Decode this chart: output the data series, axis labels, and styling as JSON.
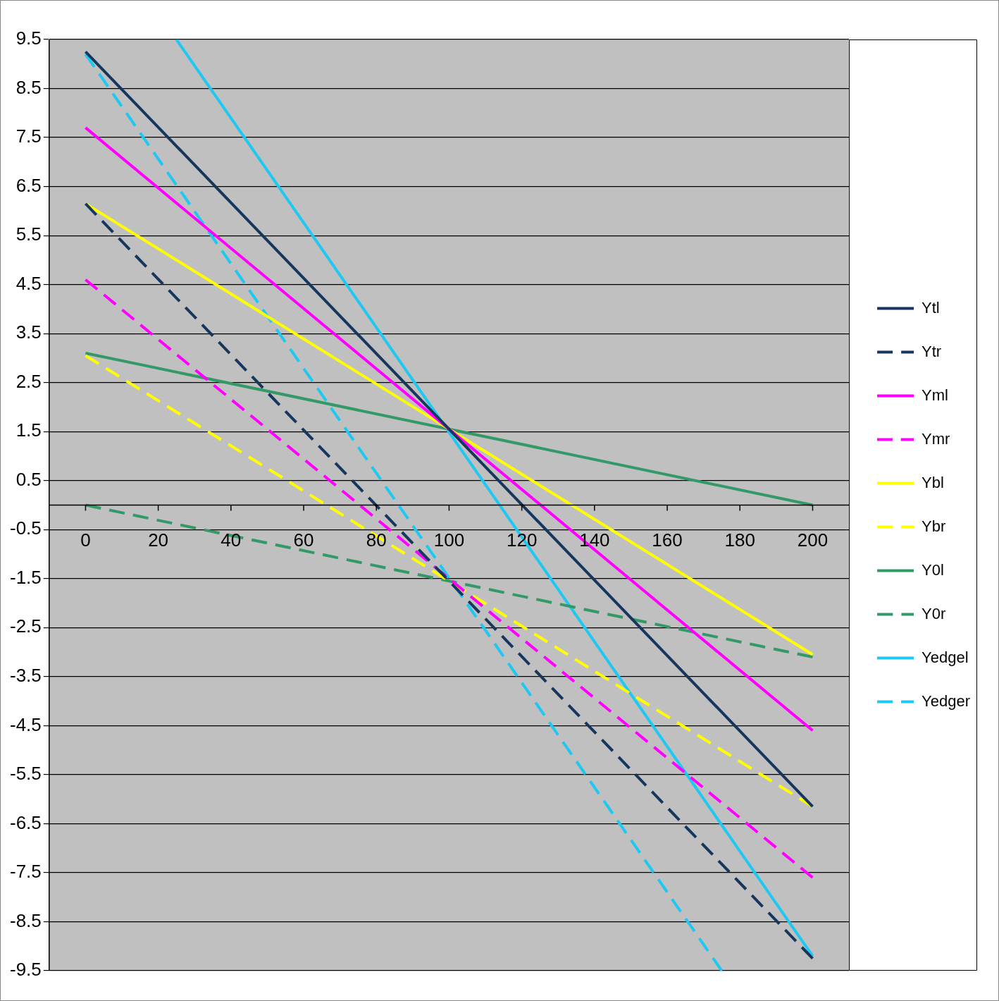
{
  "chart_data": {
    "type": "line",
    "xlim": [
      -10,
      210
    ],
    "xticks": [
      0,
      20,
      40,
      60,
      80,
      100,
      120,
      140,
      160,
      180,
      200
    ],
    "ylim": [
      -9.5,
      9.5
    ],
    "yticks": [
      -9.5,
      -8.5,
      -7.5,
      -6.5,
      -5.5,
      -4.5,
      -3.5,
      -2.5,
      -1.5,
      -0.5,
      0.5,
      1.5,
      2.5,
      3.5,
      4.5,
      5.5,
      6.5,
      7.5,
      8.5,
      9.5
    ],
    "grid": "y",
    "legend": "right",
    "marker": "none",
    "series": [
      {
        "name": "Ytl",
        "color": "#17365d",
        "line_style": "solid",
        "x": [
          0,
          200
        ],
        "values": [
          9.25,
          -6.15
        ]
      },
      {
        "name": "Ytr",
        "color": "#17365d",
        "line_style": "dashed",
        "x": [
          0,
          200
        ],
        "values": [
          6.15,
          -9.25
        ]
      },
      {
        "name": "Yml",
        "color": "#ff00ff",
        "line_style": "solid",
        "x": [
          0,
          200
        ],
        "values": [
          7.7,
          -4.6
        ]
      },
      {
        "name": "Ymr",
        "color": "#ff00ff",
        "line_style": "dashed",
        "x": [
          0,
          200
        ],
        "values": [
          4.6,
          -7.6
        ]
      },
      {
        "name": "Ybl",
        "color": "#ffff00",
        "line_style": "solid",
        "x": [
          0,
          200
        ],
        "values": [
          6.15,
          -3.05
        ]
      },
      {
        "name": "Ybr",
        "color": "#ffff00",
        "line_style": "dashed",
        "x": [
          0,
          200
        ],
        "values": [
          3.05,
          -6.15
        ]
      },
      {
        "name": "Y0l",
        "color": "#339966",
        "line_style": "solid",
        "x": [
          0,
          200
        ],
        "values": [
          3.1,
          0
        ]
      },
      {
        "name": "Y0r",
        "color": "#339966",
        "line_style": "dashed",
        "x": [
          0,
          200
        ],
        "values": [
          0,
          -3.1
        ]
      },
      {
        "name": "Yedgel",
        "color": "#1ec8f0",
        "line_style": "solid",
        "x": [
          25,
          200
        ],
        "values": [
          9.5,
          -9.2
        ]
      },
      {
        "name": "Yedger",
        "color": "#1ec8f0",
        "line_style": "dashed",
        "x": [
          0,
          175
        ],
        "values": [
          9.2,
          -9.5
        ]
      }
    ]
  }
}
